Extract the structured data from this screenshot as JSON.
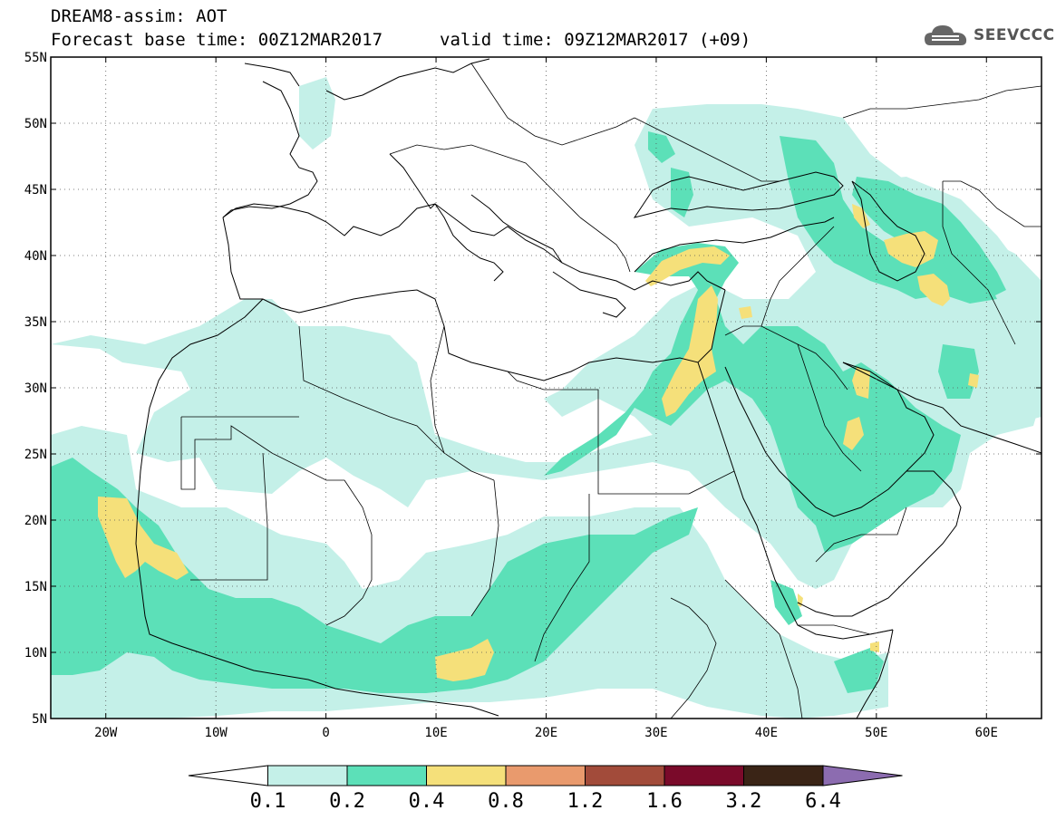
{
  "header": {
    "line1": "DREAM8-assim: AOT",
    "line2": "Forecast base time: 00Z12MAR2017",
    "line3": "valid time: 09Z12MAR2017 (+09)"
  },
  "logo": {
    "text": "SEEVCCC",
    "icon": "cloud-icon"
  },
  "map": {
    "lon_range": [
      -25,
      65
    ],
    "lat_range": [
      5,
      55
    ],
    "lon_ticks": [
      "20W",
      "10W",
      "0",
      "10E",
      "20E",
      "30E",
      "40E",
      "50E",
      "60E"
    ],
    "lat_ticks": [
      "5N",
      "10N",
      "15N",
      "20N",
      "25N",
      "30N",
      "35N",
      "40N",
      "45N",
      "50N",
      "55N"
    ],
    "grid": "dotted",
    "variable": "AOT"
  },
  "colorbar": {
    "labels": [
      "0.1",
      "0.2",
      "0.4",
      "0.8",
      "1.2",
      "1.6",
      "3.2",
      "6.4"
    ],
    "colors": [
      "#ffffff",
      "#c4f0e8",
      "#5ce0b8",
      "#f5e07a",
      "#e99a6d",
      "#a24b3a",
      "#7a0a2a",
      "#3a2416",
      "#8c6cb0"
    ]
  }
}
